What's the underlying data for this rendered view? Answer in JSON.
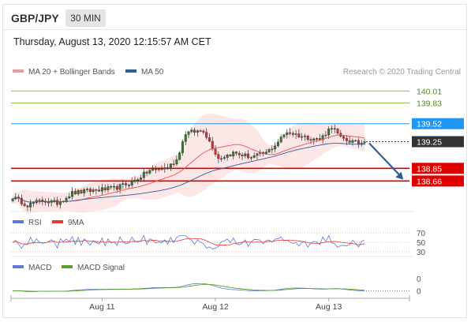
{
  "header": {
    "pair": "GBP/JPY",
    "timeframe": "30 MIN",
    "datetime": "Thursday, August 13, 2020 12:15:57 AM CET"
  },
  "colors": {
    "candle_up": "#2e7d32",
    "candle_down": "#d32f2f",
    "ma20": "#ef5350",
    "ma50": "#2c5f9e",
    "bollinger_band": "#fde2e2",
    "resistance": "#8bc34a",
    "support": "#e00000",
    "pivot": "#2196f3",
    "rsi": "#5b7bd5",
    "rsi_ma": "#e53935",
    "macd": "#5b7bd5",
    "macd_signal": "#5aa02c",
    "arrow": "#2a5f9e"
  },
  "chart_data": [
    {
      "type": "candlestick",
      "legend": [
        {
          "name": "MA 20 + Bollinger Bands",
          "color": "#ef9a9a"
        },
        {
          "name": "MA 50",
          "color": "#2c5f9e"
        }
      ],
      "credit": "Research © 2020 Trading Central",
      "ylim": [
        138.25,
        140.12
      ],
      "x_ticks": [
        {
          "label": "Aug 11",
          "index": 30
        },
        {
          "label": "Aug 12",
          "index": 68
        },
        {
          "label": "Aug 13",
          "index": 106
        }
      ],
      "levels": [
        {
          "value": 140.01,
          "label": "140.01",
          "kind": "resistance"
        },
        {
          "value": 139.83,
          "label": "139.83",
          "kind": "resistance"
        },
        {
          "value": 139.52,
          "label": "139.52",
          "kind": "pivot"
        },
        {
          "value": 139.25,
          "label": "139.25",
          "kind": "last"
        },
        {
          "value": 138.85,
          "label": "138.85",
          "kind": "support"
        },
        {
          "value": 138.66,
          "label": "138.66",
          "kind": "support"
        }
      ],
      "forecast_arrow": {
        "from_index": 118,
        "from_value": 139.25,
        "to_index": 131,
        "to_value": 138.68
      },
      "waypoints": [
        [
          0,
          138.42
        ],
        [
          5,
          138.3
        ],
        [
          10,
          138.37
        ],
        [
          15,
          138.33
        ],
        [
          20,
          138.48
        ],
        [
          27,
          138.52
        ],
        [
          34,
          138.55
        ],
        [
          40,
          138.64
        ],
        [
          46,
          138.82
        ],
        [
          52,
          138.86
        ],
        [
          55,
          138.98
        ],
        [
          58,
          139.38
        ],
        [
          64,
          139.42
        ],
        [
          69,
          139.0
        ],
        [
          74,
          139.08
        ],
        [
          80,
          139.02
        ],
        [
          85,
          139.08
        ],
        [
          88,
          139.2
        ],
        [
          92,
          139.4
        ],
        [
          97,
          139.33
        ],
        [
          103,
          139.28
        ],
        [
          107,
          139.48
        ],
        [
          110,
          139.3
        ],
        [
          114,
          139.25
        ],
        [
          116,
          139.22
        ],
        [
          118,
          139.25
        ]
      ]
    },
    {
      "type": "line",
      "indicator": "RSI",
      "legend": [
        {
          "name": "RSI",
          "color": "#5b7bd5"
        },
        {
          "name": "9MA",
          "color": "#e53935"
        }
      ],
      "levels": [
        {
          "value": 70,
          "label": "70"
        },
        {
          "value": 50,
          "label": "50"
        },
        {
          "value": 30,
          "label": "30"
        }
      ],
      "ylim": [
        25,
        75
      ]
    },
    {
      "type": "line",
      "indicator": "MACD",
      "legend": [
        {
          "name": "MACD",
          "color": "#5b7bd5"
        },
        {
          "name": "MACD Signal",
          "color": "#5aa02c"
        }
      ],
      "y_labels": [
        {
          "value": 0.35,
          "label": "0"
        },
        {
          "value": 0,
          "label": "0"
        }
      ],
      "ylim": [
        -0.12,
        0.5
      ]
    }
  ]
}
